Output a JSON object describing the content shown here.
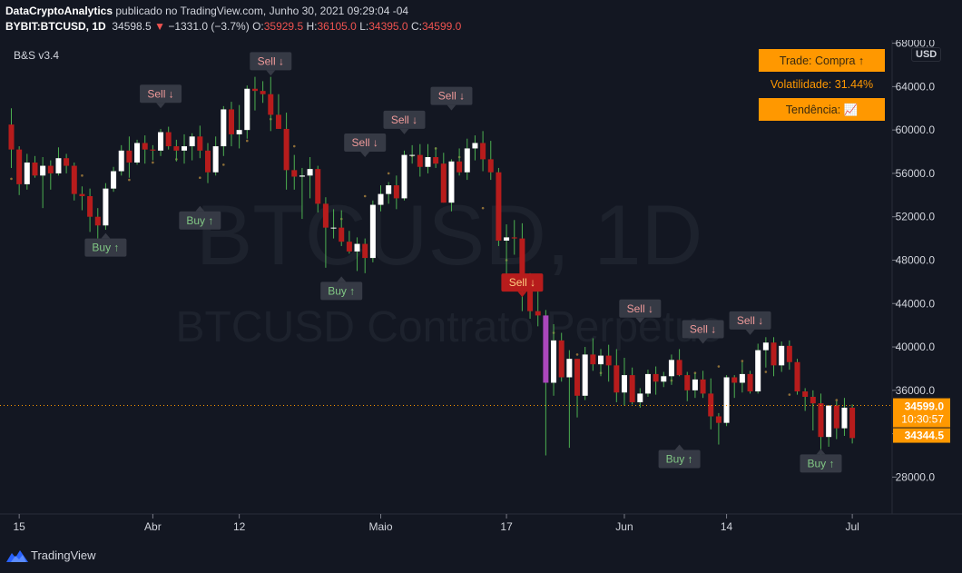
{
  "header": {
    "author": "DataCryptoAnalytics",
    "published_text": "publicado no TradingView.com, Junho 30, 2021 09:29:04 -04",
    "symbol": "BYBIT:BTCUSD, 1D",
    "last": "34598.5",
    "change_arrow": "▼",
    "change": "−1331.0 (−3.7%)",
    "o_label": "O:",
    "o_value": "35929.5",
    "h_label": "H:",
    "h_value": "36105.0",
    "l_label": "L:",
    "l_value": "34395.0",
    "c_label": "C:",
    "c_value": "34599.0"
  },
  "indicator_name": "B&S v3.4",
  "currency": "USD",
  "info_panel": {
    "trade": "Trade: Compra ↑",
    "volatility": "Volatilidade: 31.44%",
    "trend": "Tendência: 📈"
  },
  "watermark": {
    "line1": "BTCUSD, 1D",
    "line2": "BTCUSD Contrato Perpétuo"
  },
  "footer": {
    "brand": "TradingView"
  },
  "colors": {
    "background": "#131722",
    "up_candle": "#ffffff",
    "down_candle": "#b71c1c",
    "wick": "#4caf50",
    "dots": "#8d6e37",
    "accent": "#ff9800",
    "highlight_candle": "#ab47bc"
  },
  "chart_data": {
    "type": "candlestick",
    "ylim": [
      24600,
      68300
    ],
    "y_ticks": [
      "28000.0",
      "32000.0",
      "36000.0",
      "40000.0",
      "44000.0",
      "48000.0",
      "52000.0",
      "56000.0",
      "60000.0",
      "64000.0",
      "68000.0"
    ],
    "x_tick_labels": [
      {
        "day": 1,
        "label": "15"
      },
      {
        "day": 18,
        "label": "Abr"
      },
      {
        "day": 29,
        "label": "12"
      },
      {
        "day": 47,
        "label": "Maio"
      },
      {
        "day": 63,
        "label": "17"
      },
      {
        "day": 78,
        "label": "Jun"
      },
      {
        "day": 91,
        "label": "14"
      },
      {
        "day": 107,
        "label": "Jul"
      }
    ],
    "price_labels": [
      {
        "value": 34599.0,
        "text": "34599.0",
        "sub": "10:30:57"
      },
      {
        "value": 34344.5,
        "text": "34344.5",
        "sub": ""
      }
    ],
    "signals": [
      {
        "day": 12,
        "type": "Buy",
        "text": "Buy ↑",
        "anchor": 50500
      },
      {
        "day": 19,
        "type": "Sell",
        "text": "Sell ↓",
        "anchor": 62000
      },
      {
        "day": 24,
        "type": "Buy",
        "text": "Buy ↑",
        "anchor": 53000
      },
      {
        "day": 33,
        "type": "Sell",
        "text": "Sell ↓",
        "anchor": 65000
      },
      {
        "day": 42,
        "type": "Buy",
        "text": "Buy ↑",
        "anchor": 46500
      },
      {
        "day": 45,
        "type": "Sell",
        "text": "Sell ↓",
        "anchor": 57500
      },
      {
        "day": 50,
        "type": "Sell",
        "text": "Sell ↓",
        "anchor": 59600
      },
      {
        "day": 56,
        "type": "Sell",
        "text": "Sell ↓",
        "anchor": 61800
      },
      {
        "day": 65,
        "type": "Sell",
        "text": "Sell ↓",
        "anchor": 44600,
        "strong": true
      },
      {
        "day": 80,
        "type": "Sell",
        "text": "Sell ↓",
        "anchor": 42200
      },
      {
        "day": 85,
        "type": "Buy",
        "text": "Buy ↑",
        "anchor": 31000
      },
      {
        "day": 88,
        "type": "Sell",
        "text": "Sell ↓",
        "anchor": 40300
      },
      {
        "day": 94,
        "type": "Sell",
        "text": "Sell ↓",
        "anchor": 41100
      },
      {
        "day": 103,
        "type": "Buy",
        "text": "Buy ↑",
        "anchor": 30600
      }
    ],
    "dots": [
      [
        0,
        55500
      ],
      [
        3,
        56200
      ],
      [
        6,
        56800
      ],
      [
        9,
        55800
      ],
      [
        12,
        53800
      ],
      [
        15,
        55400
      ],
      [
        18,
        57000
      ],
      [
        21,
        57300
      ],
      [
        24,
        55600
      ],
      [
        27,
        56800
      ],
      [
        30,
        59000
      ],
      [
        33,
        61000
      ],
      [
        36,
        58500
      ],
      [
        39,
        54300
      ],
      [
        42,
        51800
      ],
      [
        45,
        53900
      ],
      [
        48,
        56000
      ],
      [
        51,
        57600
      ],
      [
        54,
        58300
      ],
      [
        57,
        57500
      ],
      [
        60,
        52800
      ],
      [
        63,
        48000
      ],
      [
        66,
        44300
      ],
      [
        69,
        41300
      ],
      [
        72,
        39300
      ],
      [
        75,
        37600
      ],
      [
        78,
        37000
      ],
      [
        81,
        37300
      ],
      [
        84,
        36900
      ],
      [
        87,
        37600
      ],
      [
        90,
        38200
      ],
      [
        93,
        38700
      ],
      [
        96,
        37700
      ],
      [
        99,
        35600
      ],
      [
        102,
        34900
      ],
      [
        105,
        35100
      ]
    ],
    "candles": [
      [
        60500,
        62000,
        56500,
        58200
      ],
      [
        58200,
        58500,
        54000,
        55000
      ],
      [
        55000,
        57800,
        54500,
        57000
      ],
      [
        57000,
        57600,
        55600,
        55800
      ],
      [
        55800,
        57500,
        52800,
        56700
      ],
      [
        56700,
        57200,
        54500,
        56000
      ],
      [
        56000,
        58400,
        55800,
        57400
      ],
      [
        57400,
        57800,
        56000,
        56700
      ],
      [
        56700,
        57000,
        53500,
        54100
      ],
      [
        54100,
        54800,
        52600,
        53900
      ],
      [
        53900,
        54600,
        50600,
        52000
      ],
      [
        52000,
        52800,
        50000,
        51200
      ],
      [
        51200,
        55100,
        50800,
        54600
      ],
      [
        54600,
        56600,
        54300,
        56200
      ],
      [
        56200,
        58600,
        55800,
        58100
      ],
      [
        58100,
        59400,
        55600,
        57000
      ],
      [
        57000,
        59100,
        56800,
        58800
      ],
      [
        58800,
        59500,
        56900,
        58200
      ],
      [
        58200,
        58600,
        57200,
        58100
      ],
      [
        58100,
        60100,
        57600,
        59800
      ],
      [
        59800,
        60300,
        58200,
        58500
      ],
      [
        58500,
        59100,
        57100,
        58100
      ],
      [
        58100,
        59600,
        56900,
        58500
      ],
      [
        58500,
        59700,
        57200,
        59400
      ],
      [
        59400,
        60400,
        57400,
        58100
      ],
      [
        58100,
        58800,
        55100,
        56100
      ],
      [
        56100,
        59400,
        55800,
        58500
      ],
      [
        58500,
        62200,
        57600,
        61900
      ],
      [
        61900,
        62600,
        58500,
        59600
      ],
      [
        59600,
        62300,
        58300,
        60000
      ],
      [
        60000,
        64100,
        59200,
        63800
      ],
      [
        63800,
        64900,
        61800,
        63600
      ],
      [
        63600,
        64500,
        62500,
        63300
      ],
      [
        63300,
        64900,
        59900,
        61400
      ],
      [
        61400,
        63300,
        60100,
        60100
      ],
      [
        60100,
        61600,
        54500,
        56300
      ],
      [
        56300,
        57700,
        54500,
        55700
      ],
      [
        55700,
        56500,
        51800,
        55800
      ],
      [
        55800,
        57500,
        53700,
        56400
      ],
      [
        56400,
        56700,
        52400,
        53200
      ],
      [
        53200,
        53800,
        47300,
        51000
      ],
      [
        51000,
        52700,
        50000,
        51000
      ],
      [
        51000,
        52600,
        49300,
        49700
      ],
      [
        49700,
        50700,
        48600,
        48800
      ],
      [
        48800,
        50100,
        47000,
        49500
      ],
      [
        49500,
        50000,
        46800,
        48200
      ],
      [
        48200,
        53500,
        47800,
        53100
      ],
      [
        53100,
        54900,
        52500,
        54100
      ],
      [
        54100,
        55200,
        53200,
        54900
      ],
      [
        54900,
        55800,
        52700,
        53700
      ],
      [
        53700,
        58100,
        53500,
        57700
      ],
      [
        57700,
        58600,
        56900,
        57700
      ],
      [
        57700,
        58700,
        55700,
        56600
      ],
      [
        56600,
        58700,
        56000,
        57500
      ],
      [
        57500,
        58400,
        56500,
        56900
      ],
      [
        56900,
        57900,
        53300,
        53300
      ],
      [
        53300,
        57300,
        52500,
        57100
      ],
      [
        57100,
        58300,
        55800,
        56100
      ],
      [
        56100,
        59200,
        55400,
        58300
      ],
      [
        58300,
        59500,
        57200,
        58800
      ],
      [
        58800,
        59900,
        56200,
        57300
      ],
      [
        57300,
        59000,
        55400,
        56100
      ],
      [
        56100,
        56500,
        49300,
        49800
      ],
      [
        49800,
        51300,
        46100,
        50100
      ],
      [
        50100,
        51700,
        48500,
        50000
      ],
      [
        50000,
        51400,
        43300,
        46600
      ],
      [
        46600,
        46800,
        42600,
        43300
      ],
      [
        43300,
        45500,
        41900,
        42900
      ],
      [
        42900,
        43400,
        30000,
        36700
      ],
      [
        36700,
        42100,
        35500,
        40600
      ],
      [
        40600,
        41300,
        36800,
        37200
      ],
      [
        37200,
        39700,
        30700,
        38900
      ],
      [
        38900,
        38900,
        33500,
        35500
      ],
      [
        35500,
        40000,
        35100,
        39300
      ],
      [
        39300,
        40800,
        37800,
        38400
      ],
      [
        38400,
        39800,
        37300,
        39200
      ],
      [
        39200,
        40200,
        36800,
        38300
      ],
      [
        38300,
        39800,
        34900,
        35800
      ],
      [
        35800,
        39000,
        34600,
        37400
      ],
      [
        37400,
        38100,
        34700,
        34900
      ],
      [
        34900,
        36200,
        34400,
        35700
      ],
      [
        35700,
        37900,
        35400,
        37500
      ],
      [
        37500,
        38200,
        35600,
        36800
      ],
      [
        36800,
        37700,
        36300,
        37300
      ],
      [
        37300,
        39300,
        36500,
        38800
      ],
      [
        38800,
        39800,
        37300,
        37400
      ],
      [
        37400,
        37700,
        35000,
        36000
      ],
      [
        36000,
        37600,
        35300,
        37000
      ],
      [
        37000,
        37800,
        35300,
        35700
      ],
      [
        35700,
        37100,
        32400,
        33600
      ],
      [
        33600,
        33900,
        31000,
        33000
      ],
      [
        33000,
        37400,
        32700,
        37200
      ],
      [
        37200,
        37400,
        35300,
        36700
      ],
      [
        36700,
        38600,
        35800,
        37500
      ],
      [
        37500,
        37800,
        35700,
        35900
      ],
      [
        35900,
        40300,
        35700,
        39700
      ],
      [
        39700,
        40900,
        38100,
        40400
      ],
      [
        40400,
        40900,
        37300,
        38300
      ],
      [
        38300,
        40500,
        37700,
        40100
      ],
      [
        40100,
        40600,
        37900,
        38600
      ],
      [
        38600,
        38900,
        35600,
        35900
      ],
      [
        35900,
        36200,
        34100,
        35400
      ],
      [
        35400,
        36000,
        32300,
        34800
      ],
      [
        34800,
        35700,
        29000,
        31700
      ],
      [
        31700,
        34600,
        30800,
        34600
      ],
      [
        34600,
        35000,
        31500,
        32500
      ],
      [
        32500,
        35300,
        31800,
        34400
      ],
      [
        34400,
        34700,
        31100,
        31600
      ]
    ]
  }
}
